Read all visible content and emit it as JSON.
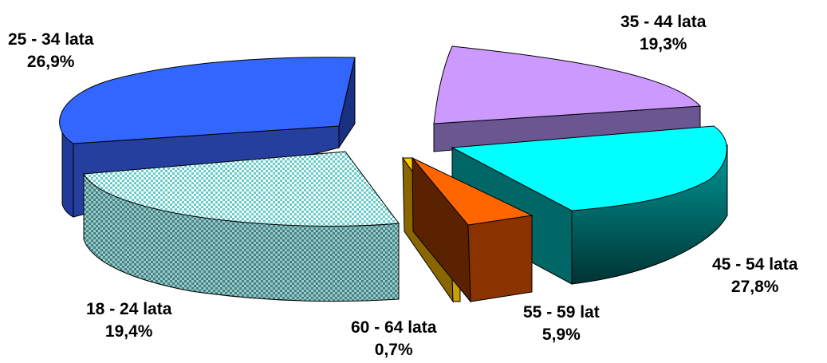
{
  "chart_data": {
    "type": "pie",
    "title": "",
    "slices": [
      {
        "label": "25 - 34 lata",
        "value_text": "26,9%",
        "value": 26.9,
        "color": "#3366FF",
        "color_side": "#1F3A99"
      },
      {
        "label": "35 - 44 lata",
        "value_text": "19,3%",
        "value": 19.3,
        "color": "#CC99FF",
        "color_side": "#6A5690"
      },
      {
        "label": "45 - 54 lata",
        "value_text": "27,8%",
        "value": 27.8,
        "color": "#00FFFF",
        "color_side": "#007F7F"
      },
      {
        "label": "55 - 59 lat",
        "value_text": "5,9%",
        "value": 5.9,
        "color": "#FF6600",
        "color_side": "#8A3300"
      },
      {
        "label": "60 - 64 lata",
        "value_text": "0,7%",
        "value": 0.7,
        "color": "#FFCC00",
        "color_side": "#8A6600"
      },
      {
        "label": "18 - 24 lata",
        "value_text": "19,4%",
        "value": 19.4,
        "color": "#CCFFFF",
        "color_side": "#5A9A9A"
      }
    ],
    "legend": "none",
    "style": "3d-exploded"
  }
}
